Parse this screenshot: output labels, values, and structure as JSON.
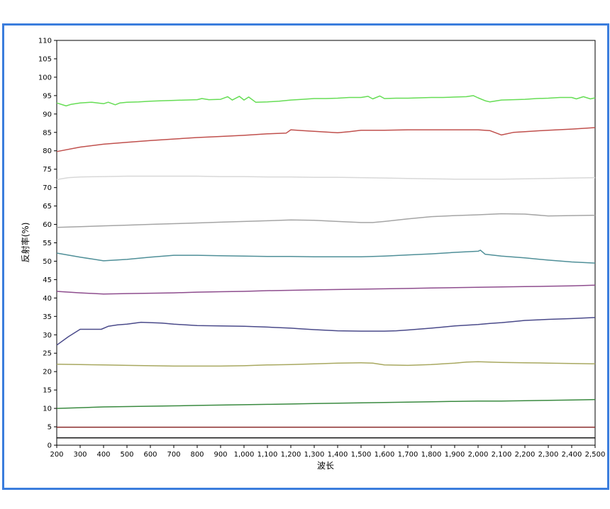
{
  "chart_data": {
    "type": "line",
    "title": "",
    "xlabel": "波长",
    "ylabel": "反射率(%)",
    "xlim": [
      200,
      2500
    ],
    "ylim": [
      0,
      110
    ],
    "xticks": [
      200,
      300,
      400,
      500,
      600,
      700,
      800,
      900,
      1000,
      1100,
      1200,
      1300,
      1400,
      1500,
      1600,
      1700,
      1800,
      1900,
      2000,
      2100,
      2200,
      2300,
      2400,
      2500
    ],
    "xtick_labels": [
      "200",
      "300",
      "400",
      "500",
      "600",
      "700",
      "800",
      "900",
      "1,000",
      "1,100",
      "1,200",
      "1,300",
      "1,400",
      "1,500",
      "1,600",
      "1,700",
      "1,800",
      "1,900",
      "2,000",
      "2,100",
      "2,200",
      "2,300",
      "2,400",
      "2,500"
    ],
    "yticks": [
      0,
      5,
      10,
      15,
      20,
      25,
      30,
      35,
      40,
      45,
      50,
      55,
      60,
      65,
      70,
      75,
      80,
      85,
      90,
      95,
      100,
      105,
      110
    ],
    "ytick_labels": [
      "0",
      "5",
      "10",
      "15",
      "20",
      "25",
      "30",
      "35",
      "40",
      "45",
      "50",
      "55",
      "60",
      "65",
      "70",
      "75",
      "80",
      "85",
      "90",
      "95",
      "100",
      "105",
      "110"
    ],
    "grid": false,
    "series": [
      {
        "color": "#66dd55",
        "x": [
          200,
          240,
          260,
          300,
          350,
          400,
          420,
          450,
          470,
          500,
          550,
          600,
          650,
          700,
          750,
          800,
          820,
          850,
          900,
          930,
          950,
          980,
          1000,
          1020,
          1050,
          1100,
          1150,
          1200,
          1250,
          1300,
          1350,
          1400,
          1450,
          1500,
          1530,
          1550,
          1580,
          1600,
          1650,
          1700,
          1750,
          1800,
          1850,
          1900,
          1950,
          1980,
          2000,
          2030,
          2050,
          2100,
          2150,
          2200,
          2250,
          2300,
          2350,
          2400,
          2420,
          2450,
          2480,
          2500
        ],
        "y": [
          93,
          92.2,
          92.6,
          93,
          93.2,
          92.8,
          93.2,
          92.5,
          93,
          93.2,
          93.3,
          93.5,
          93.6,
          93.7,
          93.8,
          93.9,
          94.2,
          93.9,
          94,
          94.7,
          93.8,
          94.8,
          93.8,
          94.6,
          93.2,
          93.3,
          93.5,
          93.8,
          94,
          94.2,
          94.2,
          94.3,
          94.5,
          94.5,
          94.8,
          94.1,
          94.9,
          94.2,
          94.3,
          94.3,
          94.4,
          94.5,
          94.5,
          94.6,
          94.7,
          95,
          94.4,
          93.6,
          93.3,
          93.8,
          93.9,
          94,
          94.2,
          94.3,
          94.5,
          94.5,
          94.1,
          94.7,
          94.1,
          94.4
        ]
      },
      {
        "color": "#c0504d",
        "x": [
          200,
          300,
          400,
          500,
          600,
          700,
          800,
          900,
          1000,
          1100,
          1180,
          1200,
          1250,
          1300,
          1400,
          1450,
          1500,
          1600,
          1700,
          1800,
          1900,
          2000,
          2050,
          2100,
          2150,
          2200,
          2300,
          2400,
          2500
        ],
        "y": [
          79.8,
          81,
          81.8,
          82.3,
          82.8,
          83.2,
          83.6,
          83.9,
          84.2,
          84.6,
          84.8,
          85.7,
          85.5,
          85.3,
          84.9,
          85.2,
          85.6,
          85.6,
          85.7,
          85.7,
          85.7,
          85.7,
          85.5,
          84.3,
          85,
          85.2,
          85.6,
          85.9,
          86.3
        ]
      },
      {
        "color": "#d8d8d8",
        "x": [
          200,
          250,
          300,
          400,
          500,
          600,
          700,
          800,
          900,
          1000,
          1100,
          1200,
          1300,
          1400,
          1500,
          1600,
          1700,
          1800,
          1900,
          2000,
          2100,
          2200,
          2300,
          2400,
          2500
        ],
        "y": [
          72.2,
          72.7,
          72.9,
          73,
          73.1,
          73.1,
          73.1,
          73.1,
          73,
          73,
          72.9,
          72.9,
          72.8,
          72.8,
          72.7,
          72.6,
          72.5,
          72.4,
          72.3,
          72.3,
          72.3,
          72.4,
          72.5,
          72.6,
          72.7
        ]
      },
      {
        "color": "#a5a5a5",
        "x": [
          200,
          300,
          400,
          500,
          600,
          700,
          800,
          900,
          1000,
          1100,
          1200,
          1300,
          1400,
          1500,
          1550,
          1600,
          1700,
          1800,
          1900,
          2000,
          2100,
          2200,
          2300,
          2400,
          2500
        ],
        "y": [
          59.2,
          59.4,
          59.6,
          59.8,
          60,
          60.2,
          60.4,
          60.6,
          60.8,
          61,
          61.2,
          61.1,
          60.8,
          60.5,
          60.5,
          60.8,
          61.5,
          62.1,
          62.4,
          62.6,
          62.9,
          62.8,
          62.3,
          62.4,
          62.5
        ]
      },
      {
        "color": "#4f8f98",
        "x": [
          200,
          300,
          400,
          500,
          600,
          700,
          800,
          900,
          1000,
          1100,
          1200,
          1300,
          1400,
          1500,
          1600,
          1700,
          1800,
          1900,
          2000,
          2010,
          2030,
          2100,
          2200,
          2300,
          2400,
          2500
        ],
        "y": [
          52.2,
          51.1,
          50.1,
          50.5,
          51.1,
          51.6,
          51.6,
          51.5,
          51.4,
          51.3,
          51.3,
          51.2,
          51.2,
          51.2,
          51.4,
          51.7,
          52,
          52.4,
          52.7,
          53,
          51.9,
          51.4,
          50.9,
          50.3,
          49.8,
          49.5
        ]
      },
      {
        "color": "#8e4d8e",
        "x": [
          200,
          300,
          400,
          500,
          600,
          700,
          800,
          900,
          1000,
          1100,
          1200,
          1300,
          1400,
          1500,
          1600,
          1700,
          1800,
          1900,
          2000,
          2100,
          2200,
          2300,
          2400,
          2500
        ],
        "y": [
          41.8,
          41.4,
          41.1,
          41.2,
          41.3,
          41.4,
          41.6,
          41.7,
          41.8,
          42,
          42.1,
          42.2,
          42.3,
          42.4,
          42.5,
          42.6,
          42.7,
          42.8,
          42.9,
          43,
          43.1,
          43.2,
          43.3,
          43.5
        ]
      },
      {
        "color": "#4a4a8a",
        "x": [
          200,
          250,
          300,
          390,
          420,
          460,
          500,
          560,
          600,
          650,
          700,
          800,
          900,
          1000,
          1100,
          1200,
          1250,
          1300,
          1400,
          1500,
          1600,
          1650,
          1700,
          1800,
          1850,
          1900,
          2000,
          2050,
          2100,
          2150,
          2200,
          2300,
          2400,
          2500
        ],
        "y": [
          27.2,
          29.5,
          31.5,
          31.5,
          32.3,
          32.7,
          32.9,
          33.4,
          33.3,
          33.2,
          32.9,
          32.5,
          32.4,
          32.3,
          32.1,
          31.8,
          31.6,
          31.4,
          31.1,
          31,
          31,
          31.1,
          31.3,
          31.8,
          32.1,
          32.4,
          32.8,
          33.1,
          33.3,
          33.6,
          33.9,
          34.2,
          34.4,
          34.7
        ]
      },
      {
        "color": "#a8a860",
        "x": [
          200,
          300,
          400,
          500,
          600,
          700,
          800,
          900,
          1000,
          1100,
          1200,
          1300,
          1400,
          1500,
          1550,
          1600,
          1700,
          1800,
          1900,
          1950,
          2000,
          2100,
          2200,
          2300,
          2400,
          2500
        ],
        "y": [
          22,
          21.9,
          21.8,
          21.7,
          21.6,
          21.5,
          21.5,
          21.5,
          21.6,
          21.8,
          21.9,
          22.1,
          22.3,
          22.4,
          22.3,
          21.8,
          21.7,
          21.9,
          22.3,
          22.6,
          22.7,
          22.5,
          22.4,
          22.3,
          22.2,
          22.1
        ]
      },
      {
        "color": "#3a8a40",
        "x": [
          200,
          300,
          400,
          500,
          600,
          700,
          800,
          900,
          1000,
          1100,
          1200,
          1300,
          1400,
          1500,
          1600,
          1700,
          1800,
          1900,
          2000,
          2100,
          2200,
          2300,
          2400,
          2500
        ],
        "y": [
          10,
          10.2,
          10.4,
          10.5,
          10.6,
          10.7,
          10.8,
          10.9,
          11,
          11.1,
          11.2,
          11.3,
          11.4,
          11.5,
          11.6,
          11.7,
          11.8,
          11.9,
          12,
          12,
          12.1,
          12.2,
          12.3,
          12.4
        ]
      },
      {
        "color": "#8a2a2a",
        "x": [
          200,
          2500
        ],
        "y": [
          4.9,
          4.9
        ]
      },
      {
        "color": "#111111",
        "x": [
          200,
          2500
        ],
        "y": [
          2,
          2
        ]
      }
    ]
  }
}
